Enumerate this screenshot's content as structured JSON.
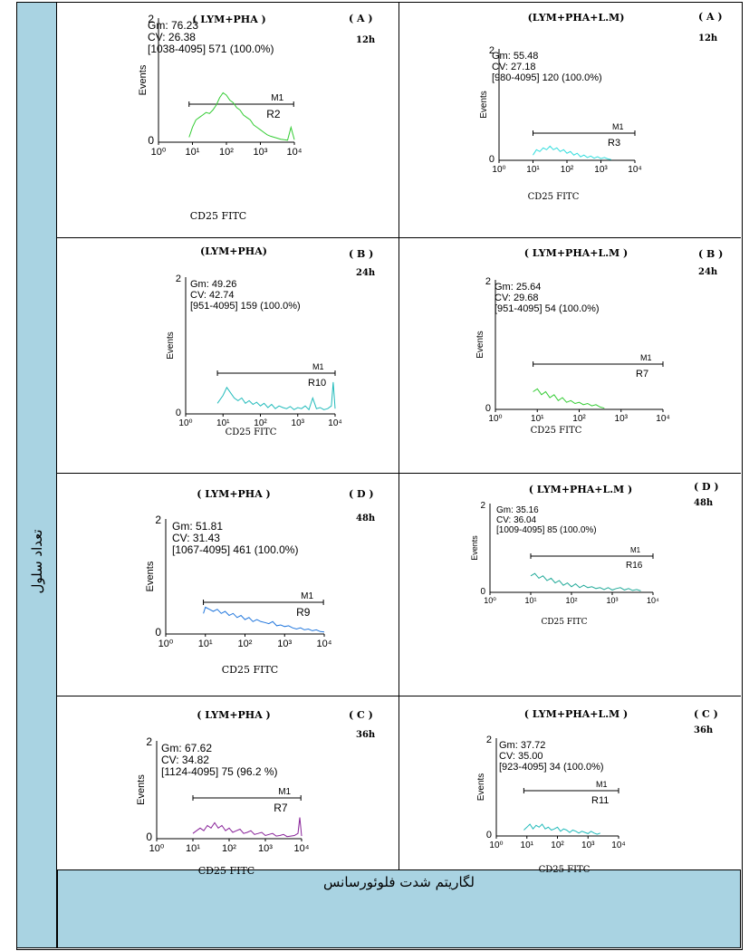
{
  "figure": {
    "y_axis_label": "تعداد سلول",
    "x_axis_label": "لگاریتم شدت فلوئورسانس"
  },
  "chart_data": [
    {
      "type": "histogram",
      "title": "( LYM+PHA )",
      "panel_letter": "( A )",
      "time": "12h",
      "gm": "Gm:  76.23",
      "cv": "CV:  26.38",
      "gate": "[1038-4095] 571     (100.0%)",
      "marker": "M1",
      "region": "R2",
      "ylabel": "Events",
      "xlabel": "CD25 FITC",
      "y_top_tick": "2",
      "y_zero_tick": "0",
      "x_ticks": [
        "10⁰",
        "10¹",
        "10²",
        "10³",
        "10⁴"
      ],
      "xlim_decades": [
        0,
        4
      ],
      "color": "#33cc33",
      "gate_range": [
        0.9,
        3.98
      ],
      "curve_x": [
        0.9,
        1.0,
        1.1,
        1.2,
        1.3,
        1.4,
        1.5,
        1.6,
        1.7,
        1.8,
        1.9,
        2.0,
        2.1,
        2.2,
        2.3,
        2.4,
        2.5,
        2.6,
        2.7,
        2.8,
        2.9,
        3.0,
        3.1,
        3.2,
        3.3,
        3.4,
        3.5,
        3.6,
        3.7,
        3.8,
        3.9,
        4.0
      ],
      "curve_y": [
        0.1,
        0.3,
        0.45,
        0.5,
        0.55,
        0.6,
        0.58,
        0.65,
        0.75,
        0.9,
        1.0,
        0.95,
        0.85,
        0.8,
        0.7,
        0.65,
        0.55,
        0.5,
        0.45,
        0.35,
        0.3,
        0.25,
        0.2,
        0.15,
        0.12,
        0.1,
        0.08,
        0.06,
        0.05,
        0.04,
        0.3,
        0.05
      ]
    },
    {
      "type": "histogram",
      "title": "(LYM+PHA+L.M)",
      "panel_letter": "( A )",
      "time": "12h",
      "gm": "Gm:  55.48",
      "cv": "CV:  27.18",
      "gate": "[980-4095] 120     (100.0%)",
      "marker": "M1",
      "region": "R3",
      "ylabel": "Events",
      "xlabel": "CD25 FITC",
      "y_top_tick": "2",
      "y_zero_tick": "0",
      "x_ticks": [
        "10⁰",
        "10¹",
        "10²",
        "10³",
        "10⁴"
      ],
      "xlim_decades": [
        0,
        4
      ],
      "color": "#33dddd",
      "gate_range": [
        1.0,
        4.0
      ],
      "curve_x": [
        1.0,
        1.1,
        1.2,
        1.3,
        1.4,
        1.5,
        1.6,
        1.7,
        1.8,
        1.9,
        2.0,
        2.1,
        2.2,
        2.3,
        2.4,
        2.5,
        2.6,
        2.7,
        2.8,
        2.9,
        3.0,
        3.1,
        3.2,
        3.3
      ],
      "curve_y": [
        0.15,
        0.3,
        0.25,
        0.35,
        0.3,
        0.4,
        0.3,
        0.35,
        0.25,
        0.3,
        0.2,
        0.25,
        0.15,
        0.2,
        0.1,
        0.15,
        0.08,
        0.12,
        0.06,
        0.1,
        0.05,
        0.08,
        0.04,
        0.02
      ]
    },
    {
      "type": "histogram",
      "title": "(LYM+PHA)",
      "panel_letter": "( B )",
      "time": "24h",
      "gm": "Gm:  49.26",
      "cv": "CV:  42.74",
      "gate": "[951-4095] 159     (100.0%)",
      "marker": "M1",
      "region": "R10",
      "ylabel": "Events",
      "xlabel": "CD25 FITC",
      "y_top_tick": "2",
      "y_zero_tick": "0",
      "x_ticks": [
        "10⁰",
        "10¹",
        "10²",
        "10³",
        "10⁴"
      ],
      "xlim_decades": [
        0,
        4
      ],
      "color": "#22bbbb",
      "gate_range": [
        0.85,
        4.0
      ],
      "curve_x": [
        0.85,
        1.0,
        1.1,
        1.2,
        1.3,
        1.4,
        1.5,
        1.6,
        1.7,
        1.8,
        1.9,
        2.0,
        2.1,
        2.2,
        2.3,
        2.4,
        2.5,
        2.6,
        2.7,
        2.8,
        2.9,
        3.0,
        3.1,
        3.2,
        3.3,
        3.4,
        3.5,
        3.6,
        3.7,
        3.8,
        3.9,
        3.95,
        4.0
      ],
      "curve_y": [
        0.2,
        0.35,
        0.5,
        0.4,
        0.3,
        0.25,
        0.3,
        0.2,
        0.25,
        0.18,
        0.22,
        0.15,
        0.2,
        0.12,
        0.18,
        0.1,
        0.15,
        0.12,
        0.1,
        0.14,
        0.08,
        0.12,
        0.1,
        0.15,
        0.08,
        0.3,
        0.1,
        0.12,
        0.08,
        0.1,
        0.15,
        0.6,
        0.1
      ]
    },
    {
      "type": "histogram",
      "title": "( LYM+PHA+L.M )",
      "panel_letter": "( B )",
      "time": "24h",
      "gm": "Gm:  25.64",
      "cv": "CV:  29.68",
      "gate": "[951-4095] 54     (100.0%)",
      "marker": "M1",
      "region": "R7",
      "ylabel": "Events",
      "xlabel": "CD25 FITC",
      "y_top_tick": "2",
      "y_zero_tick": "0",
      "x_ticks": [
        "10⁰",
        "10¹",
        "10²",
        "10³",
        "10⁴"
      ],
      "xlim_decades": [
        0,
        4
      ],
      "color": "#33cc33",
      "gate_range": [
        0.9,
        4.0
      ],
      "curve_x": [
        0.9,
        1.0,
        1.1,
        1.2,
        1.3,
        1.4,
        1.5,
        1.6,
        1.7,
        1.8,
        1.9,
        2.0,
        2.1,
        2.2,
        2.3,
        2.4,
        2.5,
        2.6
      ],
      "curve_y": [
        0.3,
        0.35,
        0.25,
        0.3,
        0.2,
        0.25,
        0.15,
        0.2,
        0.12,
        0.15,
        0.1,
        0.12,
        0.08,
        0.1,
        0.06,
        0.08,
        0.04,
        0.02
      ]
    },
    {
      "type": "histogram",
      "title": "( LYM+PHA )",
      "panel_letter": "( D )",
      "time": "48h",
      "gm": "Gm:  51.81",
      "cv": "CV:  31.43",
      "gate": "[1067-4095] 461     (100.0%)",
      "marker": "M1",
      "region": "R9",
      "ylabel": "Events",
      "xlabel": "CD25 FITC",
      "y_top_tick": "2",
      "y_zero_tick": "0",
      "x_ticks": [
        "10⁰",
        "10¹",
        "10²",
        "10³",
        "10⁴"
      ],
      "xlim_decades": [
        0,
        4
      ],
      "color": "#2277dd",
      "gate_range": [
        0.95,
        3.98
      ],
      "curve_x": [
        0.95,
        1.0,
        1.1,
        1.2,
        1.3,
        1.4,
        1.5,
        1.6,
        1.7,
        1.8,
        1.9,
        2.0,
        2.1,
        2.2,
        2.3,
        2.4,
        2.5,
        2.6,
        2.7,
        2.8,
        2.9,
        3.0,
        3.1,
        3.2,
        3.3,
        3.4,
        3.5,
        3.6,
        3.7,
        3.8,
        3.9,
        4.0
      ],
      "curve_y": [
        0.5,
        0.65,
        0.6,
        0.55,
        0.6,
        0.5,
        0.55,
        0.45,
        0.5,
        0.4,
        0.45,
        0.35,
        0.4,
        0.3,
        0.35,
        0.3,
        0.28,
        0.25,
        0.3,
        0.2,
        0.22,
        0.18,
        0.2,
        0.15,
        0.12,
        0.15,
        0.1,
        0.12,
        0.08,
        0.1,
        0.06,
        0.05
      ]
    },
    {
      "type": "histogram",
      "title": "( LYM+PHA+L.M )",
      "panel_letter": "( D )",
      "time": "48h",
      "gm": "Gm:  35.16",
      "cv": "CV:  36.04",
      "gate": "[1009-4095] 85     (100.0%)",
      "marker": "M1",
      "region": "R16",
      "ylabel": "Events",
      "xlabel": "CD25 FITC",
      "y_top_tick": "2",
      "y_zero_tick": "0",
      "x_ticks": [
        "10⁰",
        "10¹",
        "10²",
        "10³",
        "10⁴"
      ],
      "xlim_decades": [
        0,
        4
      ],
      "color": "#22aa99",
      "gate_range": [
        1.0,
        4.0
      ],
      "curve_x": [
        1.0,
        1.1,
        1.2,
        1.3,
        1.4,
        1.5,
        1.6,
        1.7,
        1.8,
        1.9,
        2.0,
        2.1,
        2.2,
        2.3,
        2.4,
        2.5,
        2.6,
        2.7,
        2.8,
        2.9,
        3.0,
        3.1,
        3.2,
        3.3,
        3.4,
        3.5,
        3.6,
        3.7
      ],
      "curve_y": [
        0.35,
        0.4,
        0.3,
        0.35,
        0.25,
        0.3,
        0.2,
        0.25,
        0.15,
        0.2,
        0.12,
        0.18,
        0.1,
        0.15,
        0.1,
        0.12,
        0.08,
        0.1,
        0.06,
        0.1,
        0.05,
        0.08,
        0.1,
        0.05,
        0.08,
        0.04,
        0.06,
        0.03
      ]
    },
    {
      "type": "histogram",
      "title": "( LYM+PHA )",
      "panel_letter": "( C )",
      "time": "36h",
      "gm": "Gm:  67.62",
      "cv": "CV:  34.82",
      "gate": "[1124-4095] 75     (96.2 %)",
      "marker": "M1",
      "region": "R7",
      "ylabel": "Events",
      "xlabel": "CD25 FITC",
      "y_top_tick": "2",
      "y_zero_tick": "0",
      "x_ticks": [
        "10⁰",
        "10¹",
        "10²",
        "10³",
        "10⁴"
      ],
      "xlim_decades": [
        0,
        4
      ],
      "color": "#882299",
      "gate_range": [
        1.0,
        3.98
      ],
      "curve_x": [
        1.0,
        1.1,
        1.2,
        1.3,
        1.4,
        1.5,
        1.6,
        1.7,
        1.8,
        1.9,
        2.0,
        2.1,
        2.2,
        2.3,
        2.4,
        2.5,
        2.6,
        2.7,
        2.8,
        2.9,
        3.0,
        3.1,
        3.2,
        3.3,
        3.4,
        3.5,
        3.6,
        3.7,
        3.8,
        3.9,
        3.95,
        4.0
      ],
      "curve_y": [
        0.1,
        0.15,
        0.2,
        0.15,
        0.25,
        0.2,
        0.3,
        0.2,
        0.25,
        0.15,
        0.2,
        0.12,
        0.15,
        0.18,
        0.1,
        0.12,
        0.15,
        0.08,
        0.1,
        0.12,
        0.06,
        0.08,
        0.1,
        0.05,
        0.06,
        0.08,
        0.04,
        0.05,
        0.06,
        0.1,
        0.4,
        0.05
      ]
    },
    {
      "type": "histogram",
      "title": "( LYM+PHA+L.M )",
      "panel_letter": "( C )",
      "time": "36h",
      "gm": "Gm:  37.72",
      "cv": "CV:  35.00",
      "gate": "[923-4095] 34     (100.0%)",
      "marker": "M1",
      "region": "R11",
      "ylabel": "Events",
      "xlabel": "CD25 FITC",
      "y_top_tick": "2",
      "y_zero_tick": "0",
      "x_ticks": [
        "10⁰",
        "10¹",
        "10²",
        "10³",
        "10⁴"
      ],
      "xlim_decades": [
        0,
        4
      ],
      "color": "#22bbbb",
      "gate_range": [
        0.9,
        4.0
      ],
      "curve_x": [
        0.9,
        1.0,
        1.1,
        1.2,
        1.3,
        1.4,
        1.5,
        1.6,
        1.7,
        1.8,
        1.9,
        2.0,
        2.1,
        2.2,
        2.3,
        2.4,
        2.5,
        2.6,
        2.7,
        2.8,
        2.9,
        3.0,
        3.1,
        3.2,
        3.3,
        3.4
      ],
      "curve_y": [
        0.1,
        0.15,
        0.2,
        0.12,
        0.18,
        0.15,
        0.2,
        0.12,
        0.15,
        0.1,
        0.12,
        0.15,
        0.08,
        0.12,
        0.1,
        0.06,
        0.1,
        0.08,
        0.05,
        0.08,
        0.06,
        0.04,
        0.08,
        0.05,
        0.03,
        0.05
      ]
    }
  ]
}
